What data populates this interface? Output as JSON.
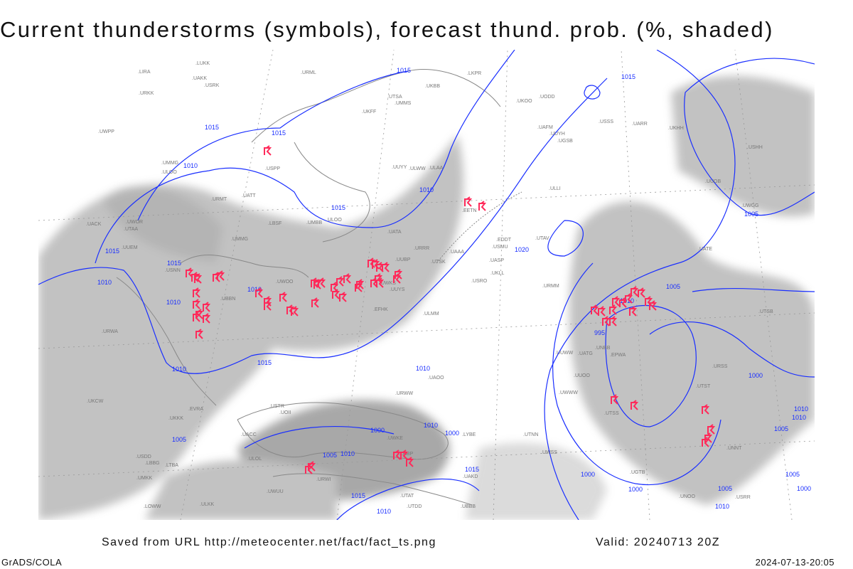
{
  "title": "Current thunderstorms (symbols), forecast thund. prob. (%, shaded)",
  "footer": {
    "saved_from": "Saved from URL http://meteocenter.net/fact/fact_ts.png",
    "valid": "Valid: 20240713 20Z",
    "software": "GrADS/COLA",
    "generated": "2024-07-13-20:05"
  },
  "colors": {
    "isobar": "#1a2fff",
    "thunderstorm_symbol": "#ff2a5a",
    "probability_shading": "#b0b0b0",
    "coastline": "#888888"
  },
  "isobar_labels": [
    "1015",
    "1015",
    "1015",
    "1010",
    "1015",
    "1010",
    "1015",
    "1010",
    "1015",
    "1010",
    "1010",
    "1010",
    "1015",
    "1015",
    "1010",
    "1020",
    "1010",
    "1005",
    "1005",
    "995",
    "1000",
    "1000",
    "1005",
    "1000",
    "1010",
    "1005",
    "1010",
    "1010",
    "1005",
    "1000",
    "1000",
    "1010",
    "1015",
    "1005",
    "1005",
    "1010",
    "1015",
    "1010",
    "1000"
  ],
  "station_labels": [
    "ULMM",
    "ULOO",
    "UUYS",
    "USDD",
    "USMU",
    "UOII",
    "UODD",
    "ULAA",
    "UUYH",
    "USRO",
    "USRK",
    "USRR",
    "USNN",
    "USHH",
    "EFHK",
    "ULLI",
    "ULKK",
    "UUYY",
    "EETN",
    "EVRA",
    "ULOO",
    "UMKK",
    "ULOL",
    "ULWW",
    "EDDT",
    "EPWA",
    "UMMG",
    "UMMS",
    "UUEM",
    "UUWW",
    "UWGG",
    "UWKS",
    "UWKE",
    "UUBP",
    "USPP",
    "USSS",
    "USTR",
    "UNOO",
    "UNNT",
    "UNBB",
    "LKPR",
    "UMBB",
    "UMMG",
    "UWWW",
    "UWUU",
    "UACK",
    "UASP",
    "LOWW",
    "LHBP",
    "UKLL",
    "UKKK",
    "UUOB",
    "UWPP",
    "UUOO",
    "UWSS",
    "UACC",
    "UAKK",
    "LIRA",
    "LYBE",
    "UKHH",
    "UKBB",
    "UWOO",
    "UWOR",
    "UATT",
    "UARR",
    "LUKK",
    "UKOO",
    "UKFF",
    "URRR",
    "UKCW",
    "URWW",
    "URWI",
    "UATG",
    "LBSF",
    "LBBG",
    "URKK",
    "URMT",
    "URWA",
    "UATA",
    "UAKD",
    "UAAA",
    "LTBA",
    "URMM",
    "URSS",
    "UTAT",
    "UATE",
    "UAOO",
    "UGTB",
    "UBBB",
    "UTNN",
    "UTSA",
    "UTSB",
    "UTAV",
    "UTSS",
    "UTSK",
    "UTST",
    "UTAA",
    "UTDD",
    "UAFM",
    "UGSB",
    "UBBN",
    "URML"
  ]
}
